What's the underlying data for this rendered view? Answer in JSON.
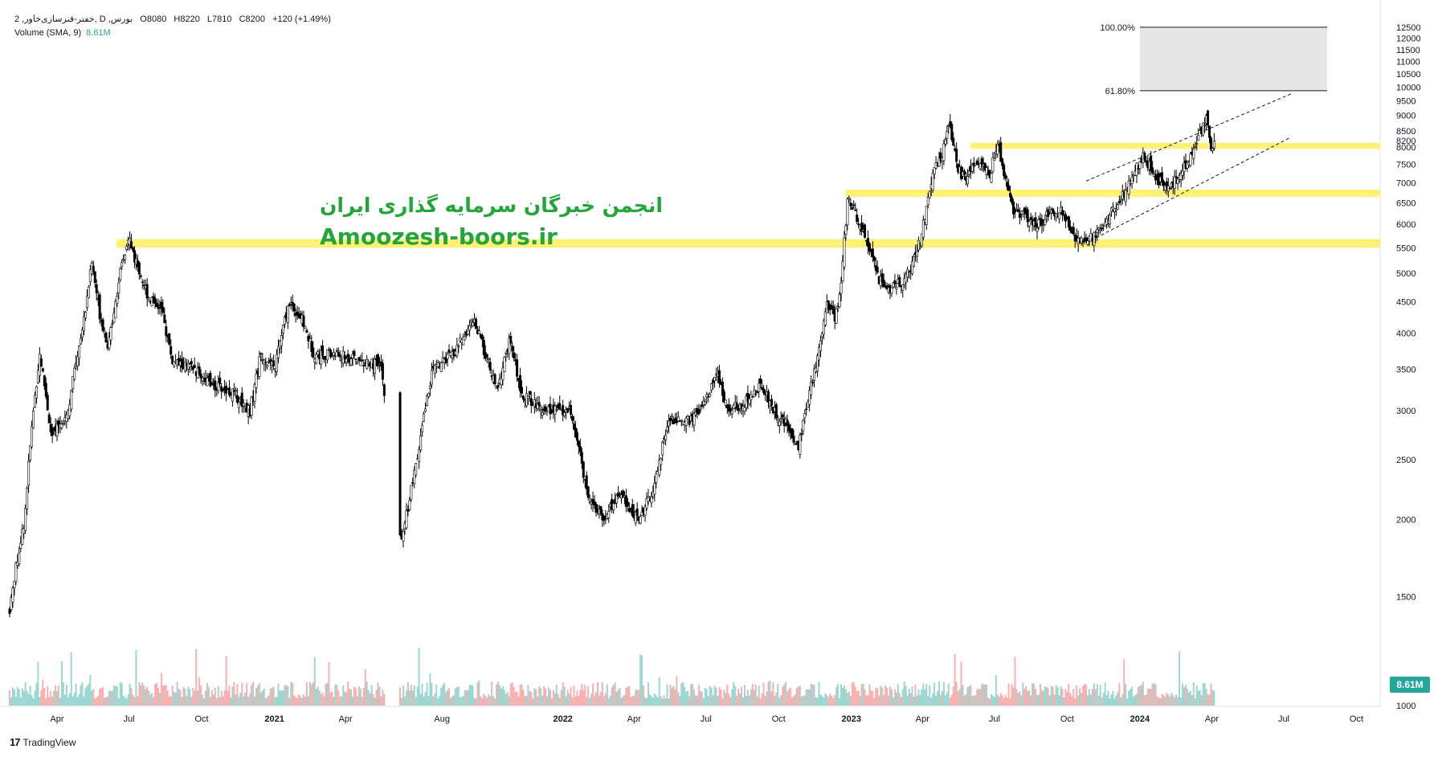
{
  "header": {
    "symbol": "2 ,خفتر-فنرسازی‌خاور, D ,بورس",
    "open_label": "O",
    "open": "8080",
    "high_label": "H",
    "high": "8220",
    "low_label": "L",
    "low": "7810",
    "close_label": "C",
    "close": "8200",
    "change": "+120 (+1.49%)",
    "volume_label": "Volume (SMA, 9)",
    "volume_value": "8.61M"
  },
  "watermark": {
    "line1": "انجمن خبرگان سرمایه گذاری ایران",
    "line2": "Amoozesh-boors.ir"
  },
  "footer": {
    "brand": "TradingView",
    "logo": "17"
  },
  "volume_badge": "8.61M",
  "colors": {
    "up": "#26a69a",
    "down": "#ef5350",
    "candle": "#000000",
    "zone": "#fff176",
    "fib_fill": "#e6e6e6",
    "watermark": "#22a63a",
    "badge": "#26a69a"
  },
  "chart_data": {
    "type": "candlestick",
    "y_axis": {
      "min": 1000,
      "max": 12800,
      "ticks": [
        1000,
        1500,
        2000,
        2500,
        3000,
        3500,
        4000,
        4500,
        5000,
        5500,
        6000,
        6500,
        7000,
        7500,
        8000,
        8200,
        8500,
        9000,
        9500,
        10000,
        10500,
        11000,
        11500,
        12000,
        12500
      ]
    },
    "x_axis": {
      "start": "2020-02-01",
      "end": "2024-10-31",
      "ticks": [
        {
          "label": "Apr",
          "date": "2020-04-01",
          "bold": false
        },
        {
          "label": "Jul",
          "date": "2020-07-01",
          "bold": false
        },
        {
          "label": "Oct",
          "date": "2020-10-01",
          "bold": false
        },
        {
          "label": "2021",
          "date": "2021-01-01",
          "bold": true
        },
        {
          "label": "Apr",
          "date": "2021-04-01",
          "bold": false
        },
        {
          "label": "Aug",
          "date": "2021-08-01",
          "bold": false
        },
        {
          "label": "2022",
          "date": "2022-01-01",
          "bold": true
        },
        {
          "label": "Apr",
          "date": "2022-04-01",
          "bold": false
        },
        {
          "label": "Jul",
          "date": "2022-07-01",
          "bold": false
        },
        {
          "label": "Oct",
          "date": "2022-10-01",
          "bold": false
        },
        {
          "label": "2023",
          "date": "2023-01-01",
          "bold": true
        },
        {
          "label": "Apr",
          "date": "2023-04-01",
          "bold": false
        },
        {
          "label": "Jul",
          "date": "2023-07-01",
          "bold": false
        },
        {
          "label": "Oct",
          "date": "2023-10-01",
          "bold": false
        },
        {
          "label": "2024",
          "date": "2024-01-01",
          "bold": true
        },
        {
          "label": "Apr",
          "date": "2024-04-01",
          "bold": false
        },
        {
          "label": "Jul",
          "date": "2024-07-01",
          "bold": false
        },
        {
          "label": "Oct",
          "date": "2024-10-01",
          "bold": false
        }
      ]
    },
    "price_path": [
      [
        "2020-02-01",
        1430
      ],
      [
        "2020-02-20",
        2000
      ],
      [
        "2020-03-10",
        3700
      ],
      [
        "2020-03-25",
        2700
      ],
      [
        "2020-04-15",
        3000
      ],
      [
        "2020-05-05",
        4200
      ],
      [
        "2020-05-15",
        5200
      ],
      [
        "2020-05-25",
        4300
      ],
      [
        "2020-06-05",
        3800
      ],
      [
        "2020-06-20",
        5000
      ],
      [
        "2020-07-01",
        5700
      ],
      [
        "2020-07-10",
        5200
      ],
      [
        "2020-07-25",
        4600
      ],
      [
        "2020-08-10",
        4400
      ],
      [
        "2020-08-25",
        3600
      ],
      [
        "2020-09-20",
        3500
      ],
      [
        "2020-10-15",
        3300
      ],
      [
        "2020-11-10",
        3200
      ],
      [
        "2020-12-01",
        3000
      ],
      [
        "2020-12-15",
        3700
      ],
      [
        "2021-01-01",
        3500
      ],
      [
        "2021-01-20",
        4500
      ],
      [
        "2021-02-05",
        4200
      ],
      [
        "2021-02-20",
        3700
      ],
      [
        "2021-03-20",
        3700
      ],
      [
        "2021-04-20",
        3600
      ],
      [
        "2021-05-15",
        3550
      ],
      [
        "2021-06-10",
        1800
      ],
      [
        "2021-07-01",
        2500
      ],
      [
        "2021-07-20",
        3500
      ],
      [
        "2021-08-15",
        3700
      ],
      [
        "2021-09-10",
        4200
      ],
      [
        "2021-09-25",
        3700
      ],
      [
        "2021-10-10",
        3200
      ],
      [
        "2021-10-25",
        3900
      ],
      [
        "2021-11-10",
        3200
      ],
      [
        "2021-12-01",
        3050
      ],
      [
        "2021-12-20",
        3000
      ],
      [
        "2022-01-10",
        3000
      ],
      [
        "2022-02-01",
        2200
      ],
      [
        "2022-02-20",
        2000
      ],
      [
        "2022-03-15",
        2200
      ],
      [
        "2022-04-05",
        2000
      ],
      [
        "2022-04-25",
        2200
      ],
      [
        "2022-05-15",
        2900
      ],
      [
        "2022-06-10",
        2900
      ],
      [
        "2022-06-25",
        3000
      ],
      [
        "2022-07-15",
        3400
      ],
      [
        "2022-07-30",
        3000
      ],
      [
        "2022-08-20",
        3100
      ],
      [
        "2022-09-10",
        3300
      ],
      [
        "2022-09-25",
        3000
      ],
      [
        "2022-10-15",
        2800
      ],
      [
        "2022-10-25",
        2600
      ],
      [
        "2022-11-05",
        3000
      ],
      [
        "2022-11-20",
        3700
      ],
      [
        "2022-12-01",
        4500
      ],
      [
        "2022-12-12",
        4200
      ],
      [
        "2022-12-20",
        5000
      ],
      [
        "2022-12-28",
        6700
      ],
      [
        "2023-01-10",
        6000
      ],
      [
        "2023-01-25",
        5500
      ],
      [
        "2023-02-05",
        4900
      ],
      [
        "2023-02-15",
        4700
      ],
      [
        "2023-03-01",
        4800
      ],
      [
        "2023-03-15",
        5000
      ],
      [
        "2023-03-25",
        5400
      ],
      [
        "2023-04-05",
        6200
      ],
      [
        "2023-04-15",
        7300
      ],
      [
        "2023-04-25",
        7700
      ],
      [
        "2023-05-05",
        8700
      ],
      [
        "2023-05-15",
        7400
      ],
      [
        "2023-05-25",
        7100
      ],
      [
        "2023-06-10",
        7600
      ],
      [
        "2023-06-25",
        7200
      ],
      [
        "2023-07-05",
        8200
      ],
      [
        "2023-07-15",
        7000
      ],
      [
        "2023-07-25",
        6300
      ],
      [
        "2023-08-10",
        6200
      ],
      [
        "2023-08-25",
        6000
      ],
      [
        "2023-09-10",
        6300
      ],
      [
        "2023-09-25",
        6300
      ],
      [
        "2023-10-05",
        5800
      ],
      [
        "2023-10-20",
        5600
      ],
      [
        "2023-11-05",
        5800
      ],
      [
        "2023-11-20",
        6100
      ],
      [
        "2023-12-05",
        6500
      ],
      [
        "2023-12-20",
        7000
      ],
      [
        "2024-01-05",
        7800
      ],
      [
        "2024-01-20",
        7200
      ],
      [
        "2024-02-05",
        6800
      ],
      [
        "2024-02-20",
        7200
      ],
      [
        "2024-03-05",
        7700
      ],
      [
        "2024-03-20",
        8600
      ],
      [
        "2024-03-25",
        8900
      ],
      [
        "2024-04-01",
        7800
      ],
      [
        "2024-04-05",
        8200
      ]
    ],
    "last_date": "2024-04-05",
    "horizontal_zones": [
      {
        "from": "2020-06-15",
        "to": "2024-10-31",
        "low": 5500,
        "high": 5680
      },
      {
        "from": "2022-12-25",
        "to": "2024-10-31",
        "low": 6650,
        "high": 6830
      },
      {
        "from": "2023-06-01",
        "to": "2024-10-31",
        "low": 7950,
        "high": 8130
      }
    ],
    "fib_box": {
      "from": "2024-01-01",
      "to": "2024-08-25",
      "top": 12500,
      "bottom": 9870,
      "top_label": "100.00%",
      "bottom_label": "61.80%"
    },
    "channel": [
      {
        "from": [
          "2023-10-25",
          5600
        ],
        "to": [
          "2024-07-10",
          8300
        ]
      },
      {
        "from": [
          "2023-10-25",
          7050
        ],
        "to": [
          "2024-07-10",
          9750
        ]
      }
    ]
  }
}
